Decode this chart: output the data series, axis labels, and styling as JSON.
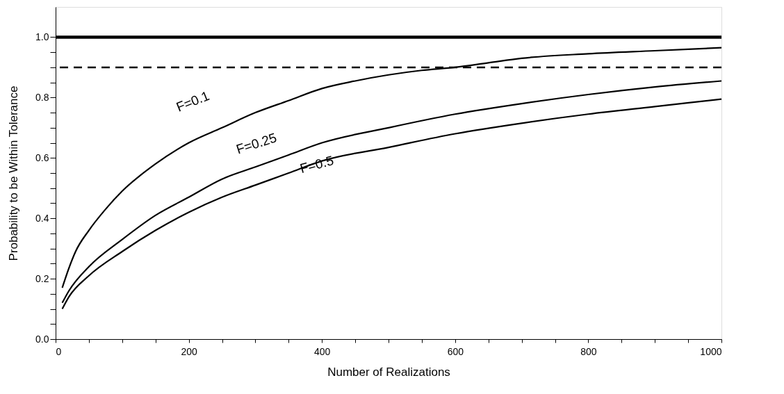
{
  "chart_data": {
    "type": "line",
    "xlabel": "Number of Realizations",
    "ylabel": "Probability to be Within Tolerance",
    "xlim": [
      0,
      1000
    ],
    "ylim": [
      0,
      1.1
    ],
    "xticks": [
      0,
      {
        "value": 50,
        "label": null
      },
      {
        "value": 100,
        "label": null
      },
      {
        "value": 150,
        "label": null
      },
      200,
      {
        "value": 250,
        "label": null
      },
      {
        "value": 300,
        "label": null
      },
      {
        "value": 350,
        "label": null
      },
      400,
      {
        "value": 450,
        "label": null
      },
      {
        "value": 500,
        "label": null
      },
      {
        "value": 550,
        "label": null
      },
      600,
      {
        "value": 650,
        "label": null
      },
      {
        "value": 700,
        "label": null
      },
      {
        "value": 750,
        "label": null
      },
      800,
      {
        "value": 850,
        "label": null
      },
      {
        "value": 900,
        "label": null
      },
      {
        "value": 950,
        "label": null
      },
      1000
    ],
    "yticks": [
      {
        "value": 0,
        "label": "0.0"
      },
      {
        "value": 0.05,
        "label": null
      },
      {
        "value": 0.1,
        "label": null
      },
      {
        "value": 0.15,
        "label": null
      },
      0.2,
      {
        "value": 0.25,
        "label": null
      },
      {
        "value": 0.3,
        "label": null
      },
      {
        "value": 0.35,
        "label": null
      },
      0.4,
      {
        "value": 0.45,
        "label": null
      },
      {
        "value": 0.5,
        "label": null
      },
      {
        "value": 0.55,
        "label": null
      },
      0.6,
      {
        "value": 0.65,
        "label": null
      },
      {
        "value": 0.7,
        "label": null
      },
      {
        "value": 0.75,
        "label": null
      },
      0.8,
      {
        "value": 0.85,
        "label": null
      },
      {
        "value": 0.9,
        "label": null
      },
      {
        "value": 0.95,
        "label": null
      },
      {
        "value": 1,
        "label": "1.0"
      }
    ],
    "grid": false,
    "marker": "none",
    "line_style": "solid",
    "ref_lines": [
      {
        "axis": "y",
        "value": 1,
        "label": null,
        "color": "#000000",
        "line_style": "solid"
      },
      {
        "axis": "y",
        "value": 0.9,
        "label": null,
        "color": "#000000",
        "line_style": "dashed"
      }
    ],
    "series": [
      {
        "name": "F=0.1",
        "color": "#000000",
        "x": [
          10,
          20,
          30,
          50,
          75,
          100,
          150,
          200,
          250,
          300,
          350,
          400,
          450,
          500,
          550,
          600,
          650,
          700,
          800,
          900,
          1000
        ],
        "values": [
          0.17,
          0.235,
          0.29,
          0.36,
          0.43,
          0.49,
          0.58,
          0.65,
          0.7,
          0.75,
          0.79,
          0.83,
          0.855,
          0.875,
          0.89,
          0.9,
          0.915,
          0.93,
          0.945,
          0.955,
          0.965
        ]
      },
      {
        "name": "F=0.25",
        "color": "#000000",
        "x": [
          10,
          20,
          50,
          100,
          150,
          200,
          250,
          300,
          350,
          400,
          500,
          600,
          700,
          800,
          900,
          1000
        ],
        "values": [
          0.12,
          0.16,
          0.24,
          0.33,
          0.41,
          0.47,
          0.53,
          0.57,
          0.61,
          0.65,
          0.7,
          0.745,
          0.78,
          0.81,
          0.835,
          0.855
        ]
      },
      {
        "name": "F=0.5",
        "color": "#000000",
        "x": [
          10,
          20,
          50,
          100,
          150,
          200,
          250,
          300,
          350,
          400,
          500,
          600,
          700,
          800,
          900,
          1000
        ],
        "values": [
          0.1,
          0.14,
          0.21,
          0.29,
          0.36,
          0.42,
          0.47,
          0.51,
          0.55,
          0.59,
          0.635,
          0.68,
          0.715,
          0.745,
          0.77,
          0.795
        ]
      }
    ]
  }
}
